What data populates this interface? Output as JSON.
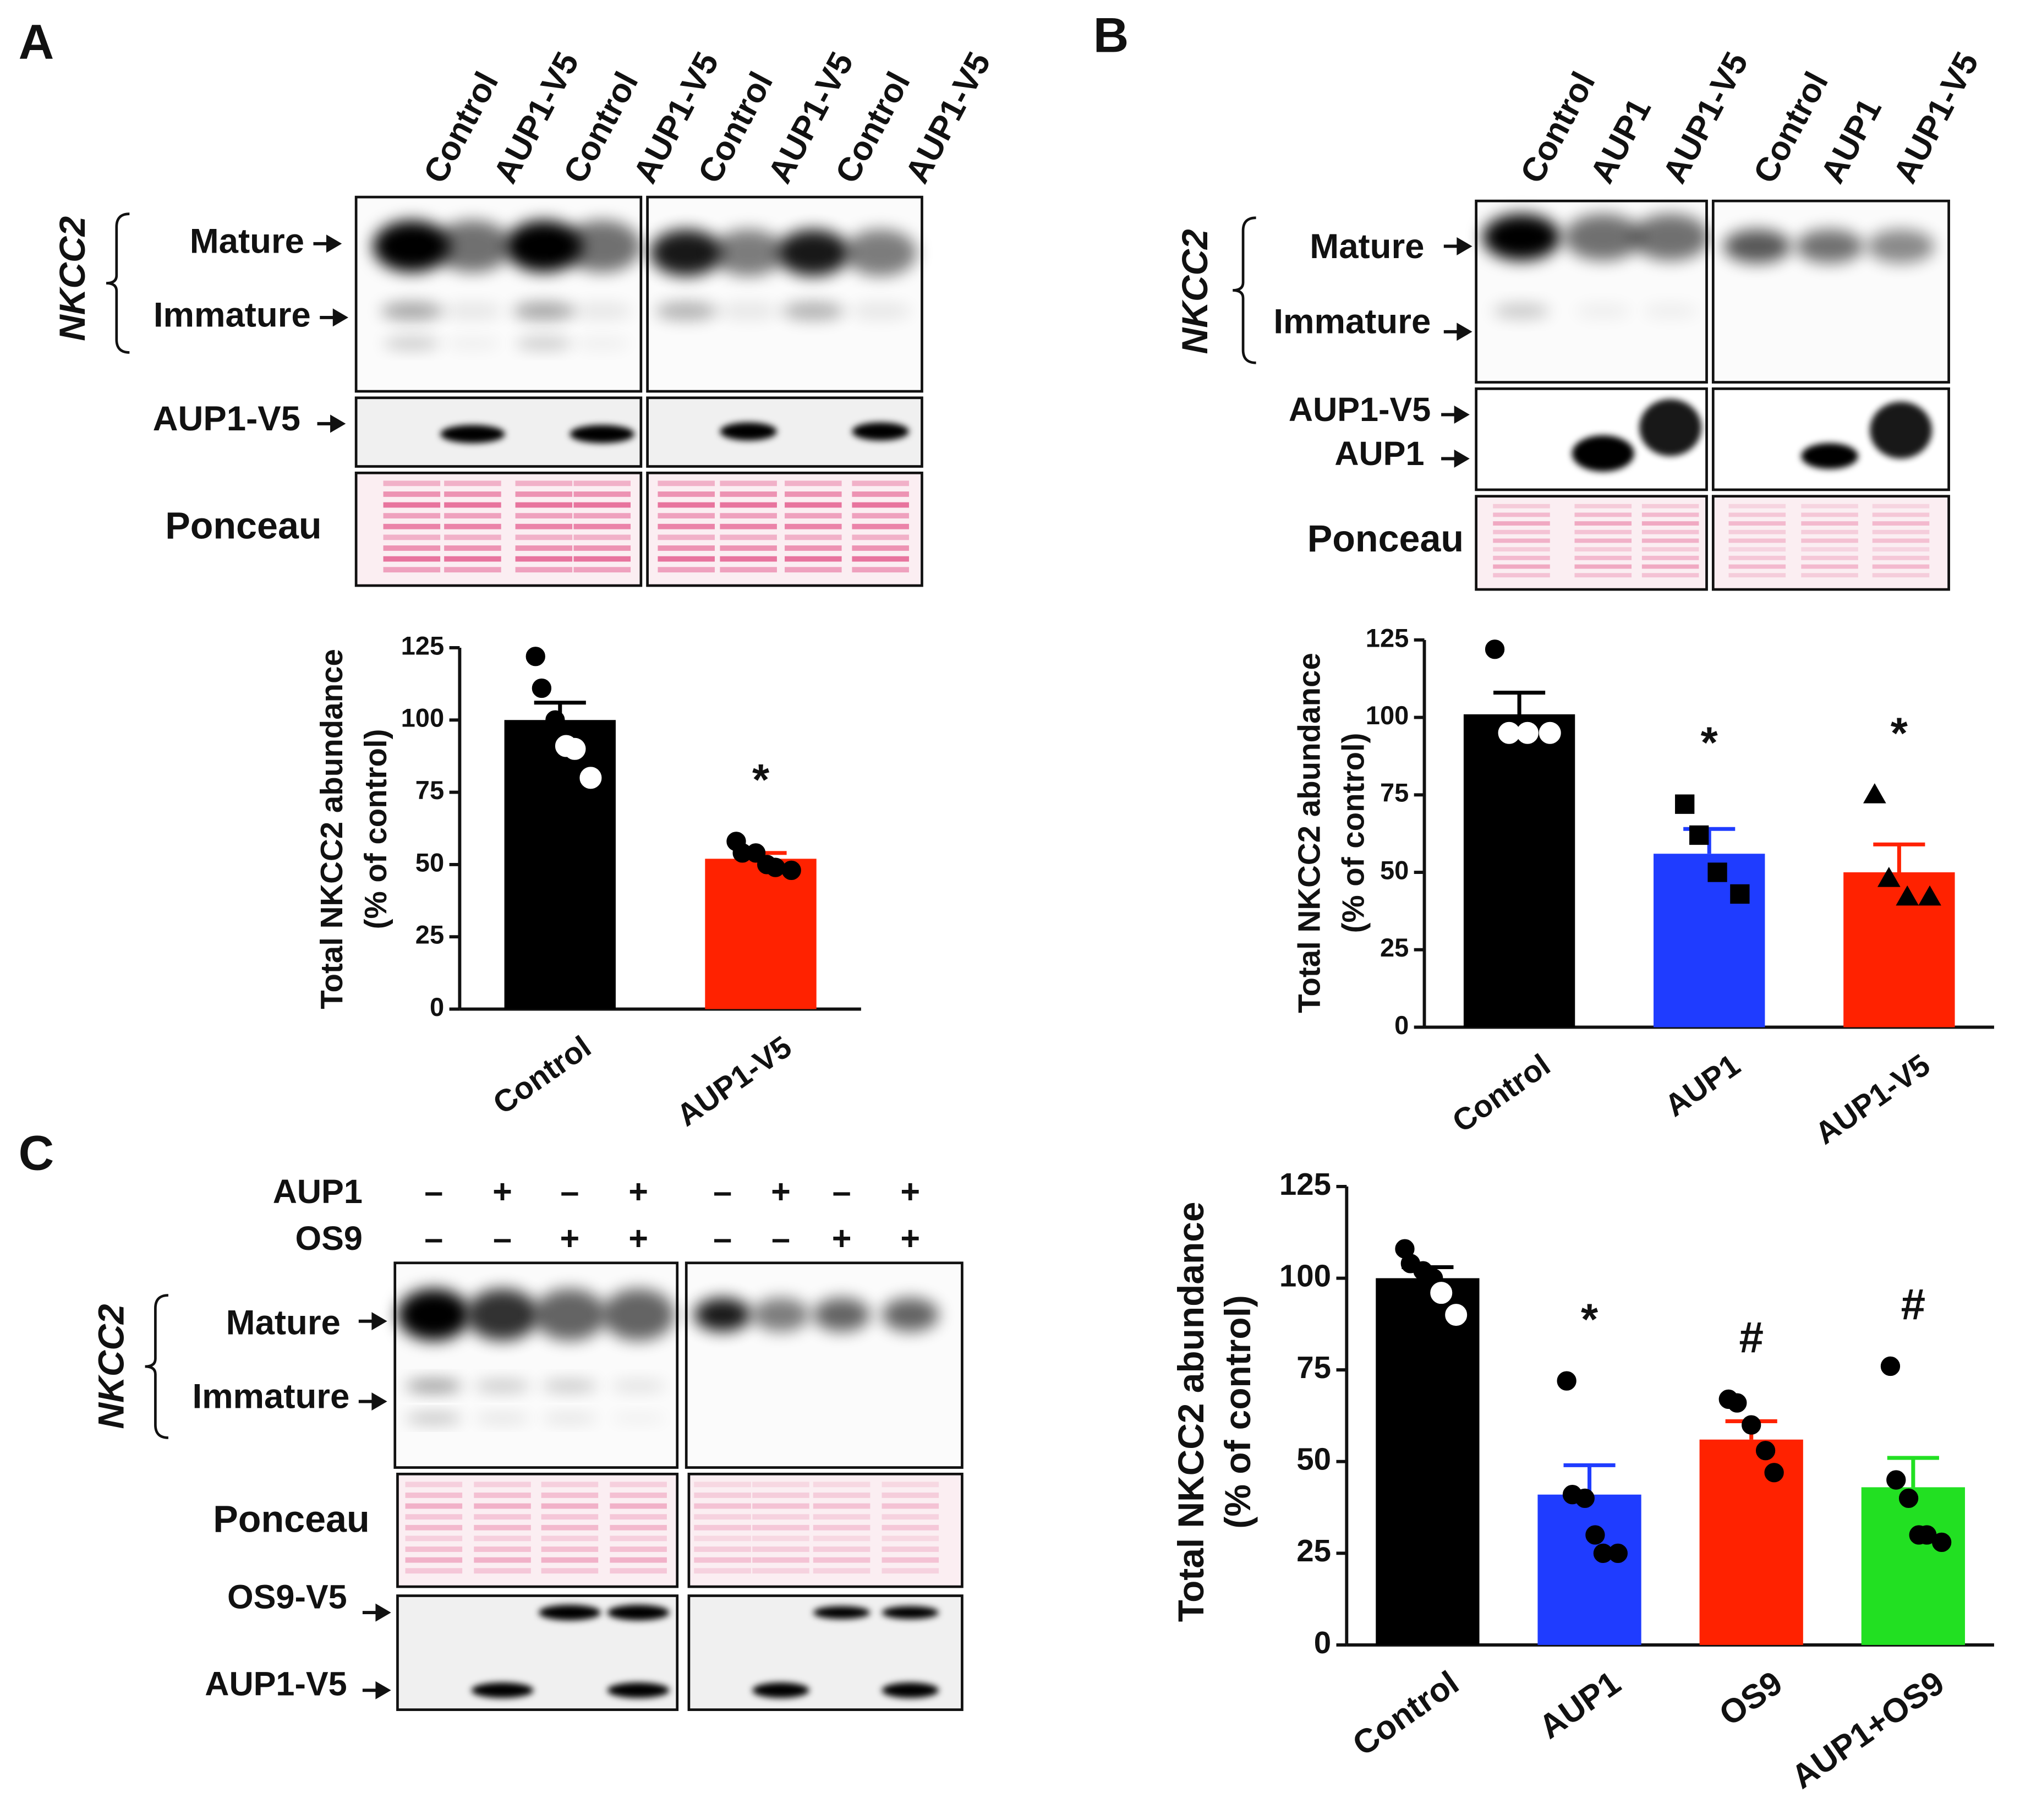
{
  "panels": [
    {
      "letter": "A",
      "lanes": [
        "Control",
        "AUP1-V5",
        "Control",
        "AUP1-V5",
        "Control",
        "AUP1-V5",
        "Control",
        "AUP1-V5"
      ],
      "group": "NKCC2",
      "bands": [
        "Mature",
        "Immature"
      ],
      "rows": [
        "AUP1-V5",
        "Ponceau"
      ]
    },
    {
      "letter": "B",
      "lanes": [
        "Control",
        "AUP1",
        "AUP1-V5",
        "Control",
        "AUP1",
        "AUP1-V5"
      ],
      "group": "NKCC2",
      "bands": [
        "Mature",
        "Immature"
      ],
      "rows": [
        "AUP1-V5",
        "AUP1",
        "Ponceau"
      ]
    },
    {
      "letter": "C",
      "conditions": [
        {
          "name": "AUP1",
          "signs": [
            "–",
            "+",
            "–",
            "+",
            "–",
            "+",
            "–",
            "+"
          ]
        },
        {
          "name": "OS9",
          "signs": [
            "–",
            "–",
            "+",
            "+",
            "–",
            "–",
            "+",
            "+"
          ]
        }
      ],
      "group": "NKCC2",
      "bands": [
        "Mature",
        "Immature"
      ],
      "rows": [
        "Ponceau",
        "OS9-V5",
        "AUP1-V5"
      ]
    }
  ],
  "chart_data": [
    {
      "type": "bar",
      "categories": [
        "Control",
        "AUP1-V5"
      ],
      "values": [
        100,
        52
      ],
      "errors": [
        6,
        2
      ],
      "colors": [
        "#000000",
        "#ff2200"
      ],
      "points": [
        [
          122,
          111,
          100,
          91,
          90,
          80
        ],
        [
          58,
          54,
          54,
          50,
          49,
          48
        ]
      ],
      "markers": [
        "circle",
        "circle"
      ],
      "annotations": [
        null,
        "*"
      ],
      "ylim": [
        0,
        125
      ],
      "yticks": [
        0,
        25,
        50,
        75,
        100,
        125
      ],
      "ylabel": [
        "Total NKCC2 abundance",
        "(% of control)"
      ]
    },
    {
      "type": "bar",
      "categories": [
        "Control",
        "AUP1",
        "AUP1-V5"
      ],
      "values": [
        101,
        56,
        50
      ],
      "errors": [
        7,
        8,
        9
      ],
      "colors": [
        "#000000",
        "#1f3cff",
        "#ff2200"
      ],
      "points": [
        [
          122,
          95,
          95,
          95
        ],
        [
          72,
          62,
          50,
          43
        ],
        [
          75,
          48,
          42,
          42
        ]
      ],
      "markers": [
        "circle",
        "square",
        "triangle"
      ],
      "annotations": [
        null,
        "*",
        "*"
      ],
      "ylim": [
        0,
        125
      ],
      "yticks": [
        0,
        25,
        50,
        75,
        100,
        125
      ],
      "ylabel": [
        "Total NKCC2 abundance",
        "(% of control)"
      ]
    },
    {
      "type": "bar",
      "categories": [
        "Control",
        "AUP1",
        "OS9",
        "AUP1+OS9"
      ],
      "values": [
        100,
        41,
        56,
        43
      ],
      "errors": [
        3,
        8,
        5,
        8
      ],
      "colors": [
        "#000000",
        "#1f3cff",
        "#ff2200",
        "#22e022"
      ],
      "points": [
        [
          108,
          104,
          102,
          100,
          96,
          90
        ],
        [
          72,
          41,
          40,
          30,
          25,
          25
        ],
        [
          67,
          66,
          60,
          53,
          47
        ],
        [
          76,
          45,
          40,
          30,
          30,
          28
        ]
      ],
      "markers": [
        "circle",
        "circle",
        "circle",
        "circle"
      ],
      "annotations": [
        null,
        "*",
        "#",
        "#"
      ],
      "ylim": [
        0,
        125
      ],
      "yticks": [
        0,
        25,
        50,
        75,
        100,
        125
      ],
      "ylabel": [
        "Total NKCC2 abundance",
        "(% of control)"
      ]
    }
  ]
}
